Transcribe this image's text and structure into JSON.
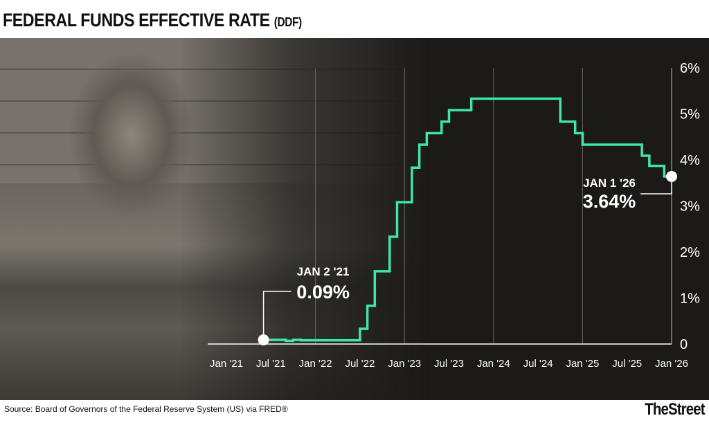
{
  "title": "FEDERAL FUNDS EFFECTIVE RATE",
  "title_suffix": "(DDF)",
  "source": "Source: Board of Governors of the Federal Reserve System (US) via FRED®",
  "logo": "TheStreet",
  "colors": {
    "line": "#3ee6a8",
    "background": "#1b1a19",
    "text": "#ffffff"
  },
  "chart_data": {
    "type": "line",
    "step": true,
    "ylim": [
      0,
      6
    ],
    "yticks": [
      "0",
      "1%",
      "2%",
      "3%",
      "4%",
      "5%",
      "6%"
    ],
    "xlim": [
      "2021-01",
      "2026-01"
    ],
    "xticks": [
      "Jan '21",
      "Jul '21",
      "Jan '22",
      "Jul '22",
      "Jan '23",
      "Jul '23",
      "Jan '24",
      "Jul '24",
      "Jan '25",
      "Jul '25",
      "Jan '26"
    ],
    "grid": "vertical",
    "series": [
      {
        "points": [
          [
            "2021-06",
            0.09
          ],
          [
            "2021-09",
            0.07
          ],
          [
            "2021-10",
            0.09
          ],
          [
            "2021-11",
            0.08
          ],
          [
            "2022-07",
            0.33
          ],
          [
            "2022-08",
            0.83
          ],
          [
            "2022-09",
            1.58
          ],
          [
            "2022-11",
            2.33
          ],
          [
            "2022-12",
            3.08
          ],
          [
            "2023-02",
            3.83
          ],
          [
            "2023-03",
            4.33
          ],
          [
            "2023-04",
            4.58
          ],
          [
            "2023-06",
            4.83
          ],
          [
            "2023-07",
            5.08
          ],
          [
            "2023-10",
            5.33
          ],
          [
            "2024-10",
            4.83
          ],
          [
            "2024-12",
            4.58
          ],
          [
            "2025-01",
            4.33
          ],
          [
            "2025-09",
            4.09
          ],
          [
            "2025-10",
            3.87
          ],
          [
            "2025-12",
            3.64
          ],
          [
            "2026-01",
            3.64
          ]
        ]
      }
    ],
    "annotations": [
      {
        "date_label": "JAN 2 '21",
        "value_label": "0.09%"
      },
      {
        "date_label": "JAN 1 '26",
        "value_label": "3.64%"
      }
    ]
  }
}
